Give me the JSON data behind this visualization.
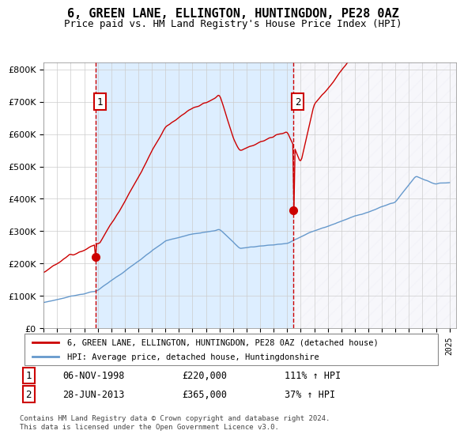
{
  "title": "6, GREEN LANE, ELLINGTON, HUNTINGDON, PE28 0AZ",
  "subtitle": "Price paid vs. HM Land Registry's House Price Index (HPI)",
  "legend_line1": "6, GREEN LANE, ELLINGTON, HUNTINGDON, PE28 0AZ (detached house)",
  "legend_line2": "HPI: Average price, detached house, Huntingdonshire",
  "sale1_date": "06-NOV-1998",
  "sale1_price": 220000,
  "sale1_label": "1",
  "sale1_hpi_text": "111% ↑ HPI",
  "sale2_date": "28-JUN-2013",
  "sale2_price": 365000,
  "sale2_label": "2",
  "sale2_hpi_text": "37% ↑ HPI",
  "footer": "Contains HM Land Registry data © Crown copyright and database right 2024.\nThis data is licensed under the Open Government Licence v3.0.",
  "red_line_color": "#cc0000",
  "blue_line_color": "#6699cc",
  "bg_shaded_color": "#ddeeff",
  "bg_hatched_color": "#e8e8f0",
  "ylim": [
    0,
    820000
  ],
  "xlim_start": 1995.0,
  "xlim_end": 2025.5
}
